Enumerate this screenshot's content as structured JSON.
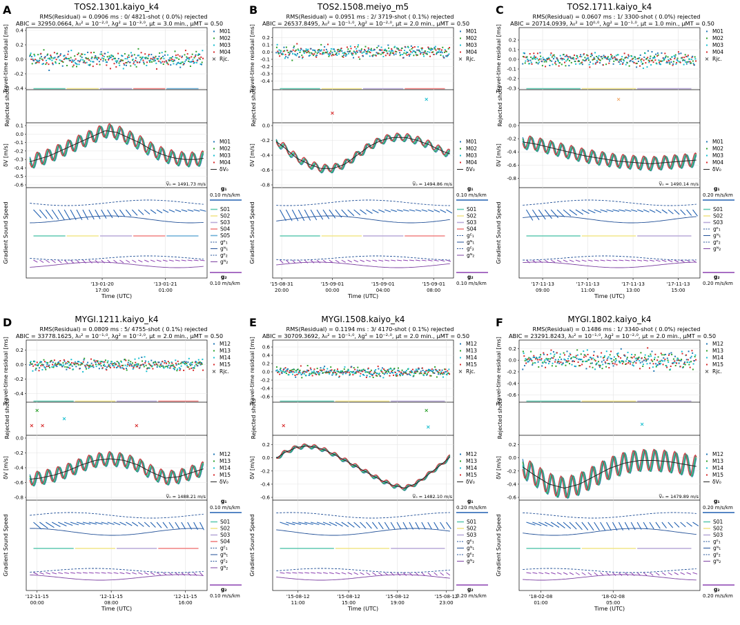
{
  "figure": {
    "common": {
      "ylabel_tt": "Travel-time residual [ms]",
      "ylabel_rej": "Rejected shots",
      "ylabel_dv": "δV [m/s]",
      "ylabel_grad": "Gradient Sound Speed",
      "xlabel": "Time (UTC)",
      "rjc_label": "Rjc.",
      "dv0_label": "δV₀",
      "g1_label": "g₁",
      "g2_label": "g₂",
      "ge1_label": "gᴱ₁",
      "gn1_label": "gᴺ₁",
      "ge2_label": "gᴱ₂",
      "gn2_label": "gᴺ₂"
    },
    "colors": {
      "tos_stations": [
        "#1f77b4",
        "#2ca02c",
        "#17becf",
        "#d62728"
      ],
      "seg": [
        "#5fc9b0",
        "#f2e58a",
        "#b8a9d8",
        "#f08080",
        "#6aaed6"
      ],
      "grad_line": "#1f4e96",
      "g2_line": "#7b3fa0",
      "dv_mean": "#222222",
      "arrow1": "#1f5fb0",
      "arrow2": "#8a3fb0"
    }
  },
  "chart_data": [
    {
      "panel": "A",
      "type": "scatter",
      "title": "TOS2.1301.kaiyo_k4",
      "rms_line": "RMS(Residual) = 0.0906 ms :    0/ 4821-shot ( 0.0%) rejected",
      "abic_line": "ABIC =  32950.0664, λ₀² = 10⁻²·⁰, λg² = 10⁻³·⁰, μt = 3.0 min., μMT = 0.50",
      "stations": [
        "M01",
        "M02",
        "M03",
        "M04"
      ],
      "segments": [
        "S01",
        "S02",
        "S03",
        "S04",
        "S05"
      ],
      "tt_ylim": [
        -0.4,
        0.4
      ],
      "tt_ticks": [
        "0.4",
        "0.2",
        "0.0",
        "-0.2",
        "-0.4"
      ],
      "tt_amp": 0.15,
      "dv_ylim": [
        -0.6,
        0.1
      ],
      "dv_ticks": [
        "0.1",
        "0.0",
        "-0.1",
        "-0.2",
        "-0.3",
        "-0.4",
        "-0.5",
        "-0.6"
      ],
      "dv_series": [
        -0.34,
        -0.3,
        -0.26,
        -0.2,
        -0.14,
        -0.08,
        -0.02,
        0.04,
        0.02,
        -0.04,
        -0.1,
        -0.18,
        -0.24,
        -0.28,
        -0.3,
        -0.3,
        -0.28
      ],
      "dv_osc": 0.08,
      "v0": "V̅₀ = 1491.73 m/s",
      "g1_scale": "0.10 m/s/km",
      "g2_scale": "0.10 m/s/km",
      "xticks": [
        {
          "f": 0.42,
          "date": "'13-01-20",
          "time": "17:00"
        },
        {
          "f": 0.77,
          "date": "'13-01-21",
          "time": "01:00"
        }
      ],
      "rejected": []
    },
    {
      "panel": "B",
      "type": "scatter",
      "title": "TOS2.1508.meiyo_m5",
      "rms_line": "RMS(Residual) = 0.0951 ms :    2/ 3719-shot ( 0.1%) rejected",
      "abic_line": "ABIC =  26537.8495, λ₀² = 10⁻¹·⁰, λg² = 10⁻²·⁰, μt = 2.0 min., μMT = 0.50",
      "stations": [
        "M01",
        "M02",
        "M03",
        "M04"
      ],
      "segments": [
        "S01",
        "S02",
        "S03",
        "S04"
      ],
      "tt_ylim": [
        -0.5,
        0.3
      ],
      "tt_ticks": [
        "0.2",
        "0.1",
        "0.0",
        "-0.1",
        "-0.2",
        "-0.3",
        "-0.4"
      ],
      "tt_amp": 0.12,
      "dv_ylim": [
        -0.8,
        0.0
      ],
      "dv_ticks": [
        "0.0",
        "-0.2",
        "-0.4",
        "-0.6",
        "-0.8"
      ],
      "dv_series": [
        -0.18,
        -0.3,
        -0.44,
        -0.52,
        -0.58,
        -0.58,
        -0.52,
        -0.4,
        -0.28,
        -0.2,
        -0.16,
        -0.16,
        -0.2,
        -0.26,
        -0.34,
        -0.4
      ],
      "dv_osc": 0.05,
      "v0": "V̅₀ = 1494.86 m/s",
      "g1_scale": "0.10 m/s/km",
      "g2_scale": "0.10 m/s/km",
      "xticks": [
        {
          "f": 0.05,
          "date": "'15-08-31",
          "time": "20:00"
        },
        {
          "f": 0.33,
          "date": "'15-09-01",
          "time": "00:00"
        },
        {
          "f": 0.61,
          "date": "'15-09-01",
          "time": "04:00"
        },
        {
          "f": 0.89,
          "date": "'15-09-01",
          "time": "08:00"
        }
      ],
      "rejected": [
        {
          "f": 0.33,
          "v": 0.3,
          "c": "#d62728"
        },
        {
          "f": 0.85,
          "v": 0.8,
          "c": "#17becf"
        }
      ]
    },
    {
      "panel": "C",
      "type": "scatter",
      "title": "TOS2.1711.kaiyo_k4",
      "rms_line": "RMS(Residual) = 0.0607 ms :    1/ 3300-shot ( 0.0%) rejected",
      "abic_line": "ABIC =  20714.0939, λ₀² = 10⁰·⁰, λg² = 10⁻¹·⁰, μt = 1.0 min., μMT = 0.50",
      "stations": [
        "M01",
        "M02",
        "M03",
        "M04"
      ],
      "segments": [
        "S01",
        "S02",
        "S03"
      ],
      "tt_ylim": [
        -0.3,
        0.3
      ],
      "tt_ticks": [
        "0.2",
        "0.1",
        "0.0",
        "-0.1",
        "-0.2",
        "-0.3"
      ],
      "tt_amp": 0.1,
      "dv_ylim": [
        -0.9,
        0.0
      ],
      "dv_ticks": [
        "0.0",
        "-0.2",
        "-0.4",
        "-0.6",
        "-0.8"
      ],
      "dv_series": [
        -0.24,
        -0.28,
        -0.34,
        -0.4,
        -0.46,
        -0.5,
        -0.54,
        -0.56,
        -0.58,
        -0.56,
        -0.54,
        -0.52
      ],
      "dv_osc": 0.1,
      "v0": "V̅₀ = 1490.14 m/s",
      "g1_scale": "0.20 m/s/km",
      "g2_scale": "0.20 m/s/km",
      "xticks": [
        {
          "f": 0.13,
          "date": "'17-11-13",
          "time": "09:00"
        },
        {
          "f": 0.38,
          "date": "'17-11-13",
          "time": "11:00"
        },
        {
          "f": 0.63,
          "date": "'17-11-13",
          "time": "13:00"
        },
        {
          "f": 0.88,
          "date": "'17-11-13",
          "time": "15:00"
        }
      ],
      "rejected": [
        {
          "f": 0.55,
          "v": 0.8,
          "c": "#f2a96b"
        }
      ]
    },
    {
      "panel": "D",
      "type": "scatter",
      "title": "MYGI.1211.kaiyo_k4",
      "rms_line": "RMS(Residual) = 0.0809 ms :    5/ 4755-shot ( 0.1%) rejected",
      "abic_line": "ABIC =  33778.1625, λ₀² = 10⁻¹·⁰, λg² = 10⁻²·⁰, μt = 2.0 min., μMT = 0.50",
      "stations": [
        "M12",
        "M13",
        "M14",
        "M15"
      ],
      "segments": [
        "S01",
        "S02",
        "S03",
        "S04"
      ],
      "tt_ylim": [
        -0.5,
        0.3
      ],
      "tt_ticks": [
        "0.2",
        "0.0",
        "-0.2",
        "-0.4"
      ],
      "tt_amp": 0.12,
      "dv_ylim": [
        -0.8,
        0.0
      ],
      "dv_ticks": [
        "0.0",
        "-0.2",
        "-0.4",
        "-0.6",
        "-0.8"
      ],
      "dv_series": [
        -0.56,
        -0.54,
        -0.5,
        -0.44,
        -0.36,
        -0.3,
        -0.28,
        -0.3,
        -0.36,
        -0.46,
        -0.54,
        -0.52,
        -0.46,
        -0.4
      ],
      "dv_osc": 0.09,
      "v0": "V̅₀ = 1488.21 m/s",
      "g1_scale": "0.10 m/s/km",
      "g2_scale": "0.10 m/s/km",
      "xticks": [
        {
          "f": 0.06,
          "date": "'12-11-15",
          "time": "00:00"
        },
        {
          "f": 0.47,
          "date": "'12-11-15",
          "time": "08:00"
        },
        {
          "f": 0.88,
          "date": "'12-11-15",
          "time": "16:00"
        }
      ],
      "rejected": [
        {
          "f": 0.03,
          "v": 0.3,
          "c": "#d62728"
        },
        {
          "f": 0.06,
          "v": 0.85,
          "c": "#2ca02c"
        },
        {
          "f": 0.09,
          "v": 0.3,
          "c": "#d62728"
        },
        {
          "f": 0.21,
          "v": 0.55,
          "c": "#17becf"
        },
        {
          "f": 0.61,
          "v": 0.3,
          "c": "#d62728"
        }
      ]
    },
    {
      "panel": "E",
      "type": "scatter",
      "title": "MYGI.1508.kaiyo_k4",
      "rms_line": "RMS(Residual) = 0.1194 ms :    3/ 4170-shot ( 0.1%) rejected",
      "abic_line": "ABIC =  30709.3692, λ₀² = 10⁻¹·⁰, λg² = 10⁻²·⁰, μt = 2.0 min., μMT = 0.50",
      "stations": [
        "M12",
        "M13",
        "M14",
        "M15"
      ],
      "segments": [
        "S01",
        "S02",
        "S03"
      ],
      "tt_ylim": [
        -0.7,
        0.7
      ],
      "tt_ticks": [
        "0.6",
        "0.4",
        "0.2",
        "0.0",
        "-0.2",
        "-0.4",
        "-0.6"
      ],
      "tt_amp": 0.16,
      "dv_ylim": [
        -0.6,
        0.3
      ],
      "dv_ticks": [
        "0.2",
        "0.0",
        "-0.2",
        "-0.4",
        "-0.6"
      ],
      "dv_series": [
        -0.04,
        0.08,
        0.16,
        0.18,
        0.14,
        0.06,
        -0.04,
        -0.14,
        -0.24,
        -0.34,
        -0.42,
        -0.46,
        -0.38,
        -0.24,
        -0.1,
        0.06
      ],
      "dv_osc": 0.03,
      "v0": "V̅₀ = 1482.10 m/s",
      "g1_scale": "0.20 m/s/km",
      "g2_scale": "0.20 m/s/km",
      "xticks": [
        {
          "f": 0.14,
          "date": "'15-08-12",
          "time": "11:00"
        },
        {
          "f": 0.42,
          "date": "'15-08-12",
          "time": "15:00"
        },
        {
          "f": 0.69,
          "date": "'15-08-12",
          "time": "19:00"
        },
        {
          "f": 0.96,
          "date": "'15-08-12",
          "time": "23:00"
        }
      ],
      "rejected": [
        {
          "f": 0.06,
          "v": 0.3,
          "c": "#d62728"
        },
        {
          "f": 0.85,
          "v": 0.85,
          "c": "#2ca02c"
        },
        {
          "f": 0.86,
          "v": 0.25,
          "c": "#17becf"
        }
      ]
    },
    {
      "panel": "F",
      "type": "scatter",
      "title": "MYGI.1802.kaiyo_k4",
      "rms_line": "RMS(Residual) = 0.1486 ms :    1/ 3340-shot ( 0.0%) rejected",
      "abic_line": "ABIC =  23291.8243, λ₀² = 10⁻¹·⁰, λg² = 10⁻²·⁰, μt = 2.0 min., μMT = 0.50",
      "stations": [
        "M12",
        "M13",
        "M14",
        "M15"
      ],
      "segments": [
        "S01",
        "S02",
        "S03"
      ],
      "tt_ylim": [
        -0.7,
        0.3
      ],
      "tt_ticks": [
        "0.2",
        "0.0",
        "-0.2",
        "-0.4",
        "-0.6"
      ],
      "tt_amp": 0.22,
      "dv_ylim": [
        -0.6,
        0.3
      ],
      "dv_ticks": [
        "0.2",
        "0.0",
        "-0.2",
        "-0.4",
        "-0.6"
      ],
      "dv_series": [
        -0.1,
        -0.26,
        -0.4,
        -0.46,
        -0.4,
        -0.28,
        -0.16,
        -0.08,
        -0.04,
        -0.04,
        -0.06,
        -0.1,
        -0.14
      ],
      "dv_osc": 0.16,
      "v0": "V̅₀ = 1479.89 m/s",
      "g1_scale": "0.20 m/s/km",
      "g2_scale": "0.20 m/s/km",
      "xticks": [
        {
          "f": 0.12,
          "date": "'18-02-08",
          "time": "01:00"
        },
        {
          "f": 0.52,
          "date": "'18-02-08",
          "time": "05:00"
        }
      ],
      "rejected": [
        {
          "f": 0.68,
          "v": 0.35,
          "c": "#17becf"
        }
      ]
    }
  ]
}
